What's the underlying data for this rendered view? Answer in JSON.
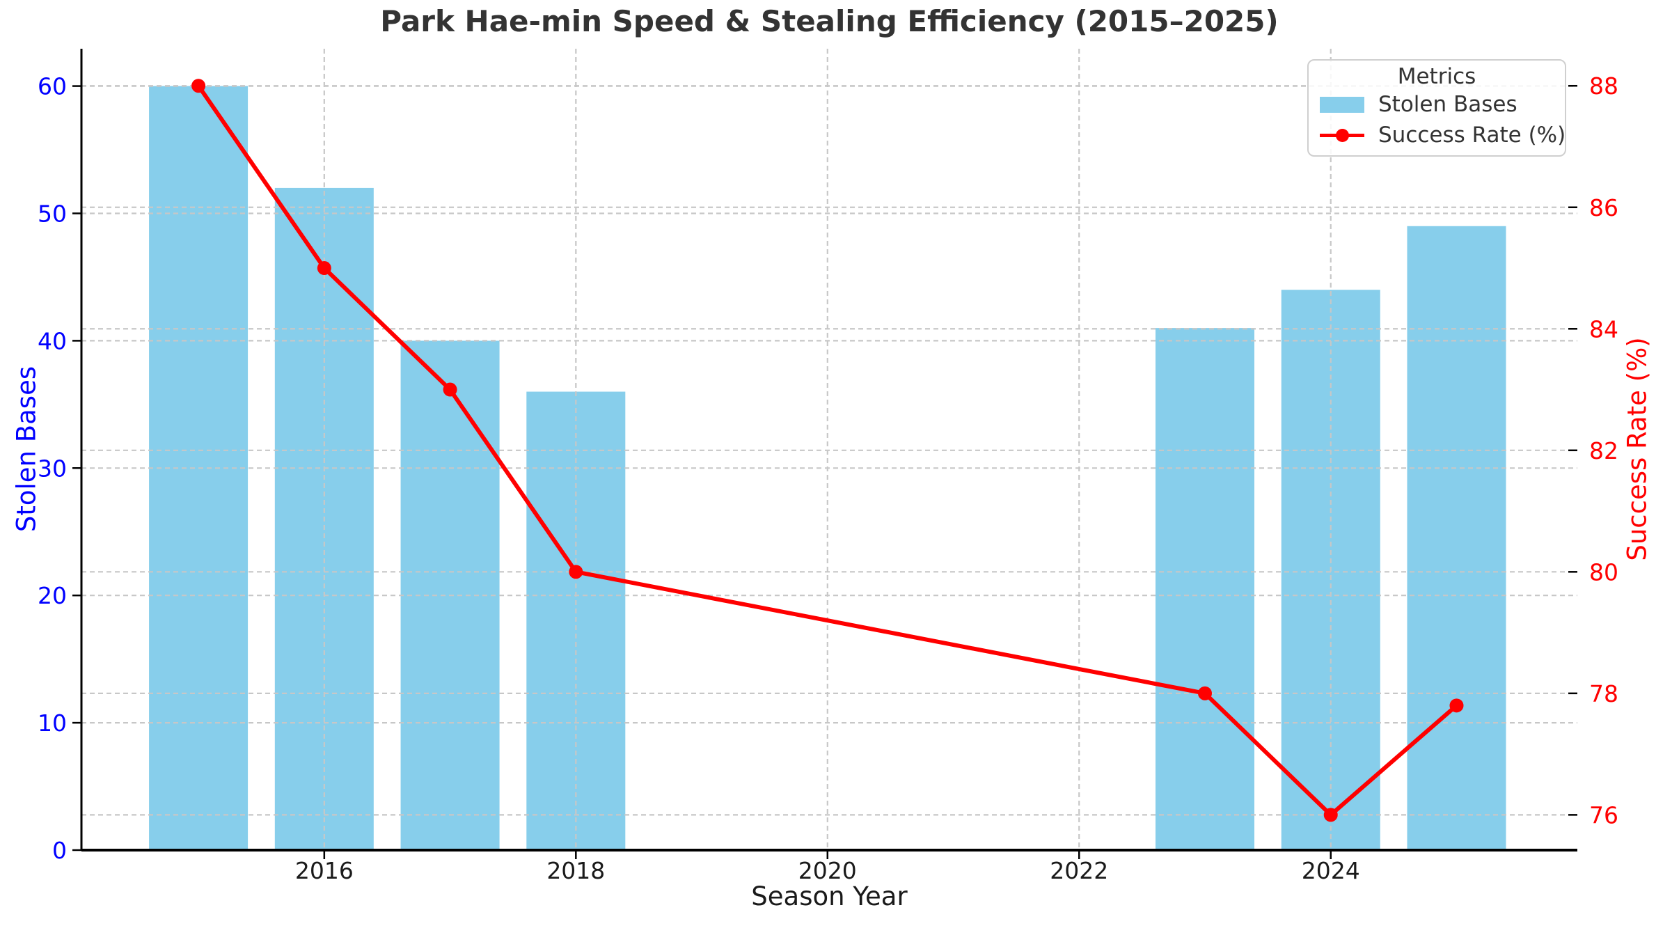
{
  "chart_data": {
    "type": "bar",
    "title": "Park Hae-min Speed & Stealing Efficiency (2015–2025)",
    "xlabel": "Season Year",
    "x": [
      2015,
      2016,
      2017,
      2018,
      2023,
      2024,
      2025
    ],
    "series": [
      {
        "name": "Stolen Bases",
        "type": "bar",
        "axis": "left",
        "color": "#87CEEB",
        "values": [
          60,
          52,
          40,
          36,
          41,
          44,
          49
        ]
      },
      {
        "name": "Success Rate (%)",
        "type": "line",
        "axis": "right",
        "color": "#FF0000",
        "marker": "circle",
        "values": [
          88,
          85,
          83,
          80,
          78,
          76,
          77.8
        ]
      }
    ],
    "left_axis": {
      "label": "Stolen Bases",
      "color": "#0000FF",
      "ticks": [
        0,
        10,
        20,
        30,
        40,
        50,
        60
      ],
      "lim": [
        0,
        62.93
      ]
    },
    "right_axis": {
      "label": "Success Rate (%)",
      "color": "#FF0000",
      "ticks": [
        76,
        78,
        80,
        82,
        84,
        86,
        88
      ],
      "lim": [
        75.42,
        88.61
      ]
    },
    "x_axis": {
      "label": "Season Year",
      "ticks": [
        2016,
        2018,
        2020,
        2022,
        2024
      ],
      "tick_color": "#1a1a1a",
      "lim": [
        2014.07,
        2025.96
      ]
    },
    "legend": {
      "title": "Metrics",
      "entries": [
        "Stolen Bases",
        "Success Rate (%)"
      ],
      "position": "upper right"
    },
    "grid": {
      "on": true,
      "style": "dashed",
      "color": "#c7c7c7"
    },
    "title_color": "#333333"
  }
}
